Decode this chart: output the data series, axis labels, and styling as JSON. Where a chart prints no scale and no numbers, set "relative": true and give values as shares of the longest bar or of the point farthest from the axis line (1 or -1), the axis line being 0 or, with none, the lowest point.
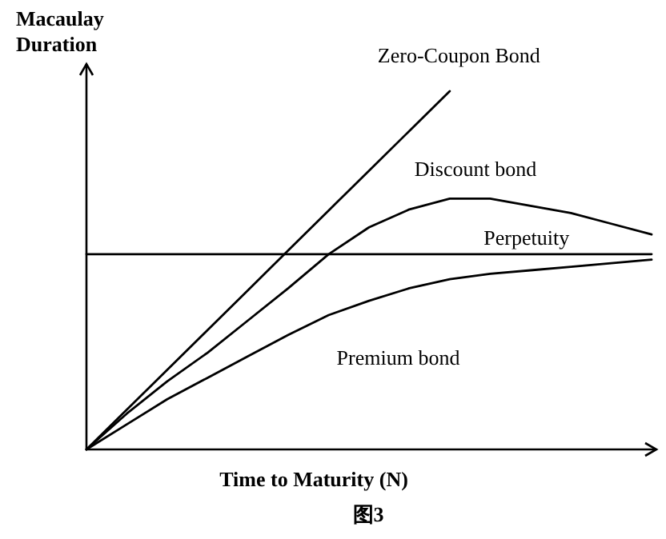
{
  "chart_data": {
    "type": "line",
    "relative": true,
    "categories": [
      null,
      null,
      null,
      null,
      null,
      null,
      null,
      null,
      null,
      null,
      null,
      null,
      null,
      null,
      null
    ],
    "xlabel": "Time to Maturity (N)",
    "ylabel": "Macaulay Duration",
    "annotations": [
      "图3"
    ],
    "series": [
      {
        "name": "Zero-Coupon Bond",
        "color": "#000000",
        "values": [
          0,
          0.111,
          0.222,
          0.333,
          0.444,
          0.556,
          0.667,
          0.778,
          0.889,
          1,
          null,
          null,
          null,
          null,
          null
        ]
      },
      {
        "name": "Discount bond",
        "color": "#000000",
        "values": [
          0,
          0.1,
          0.19,
          0.27,
          0.36,
          0.45,
          0.545,
          0.62,
          0.67,
          0.7,
          0.7,
          0.68,
          0.66,
          0.63,
          0.6
        ]
      },
      {
        "name": "Perpetuity",
        "color": "#000000",
        "values": [
          0.545,
          0.545,
          0.545,
          0.545,
          0.545,
          0.545,
          0.545,
          0.545,
          0.545,
          0.545,
          0.545,
          0.545,
          0.545,
          0.545,
          0.545
        ]
      },
      {
        "name": "Premium bond",
        "color": "#000000",
        "values": [
          0,
          0.07,
          0.14,
          0.2,
          0.26,
          0.32,
          0.375,
          0.415,
          0.45,
          0.475,
          0.49,
          0.5,
          0.51,
          0.52,
          0.53
        ]
      }
    ]
  }
}
